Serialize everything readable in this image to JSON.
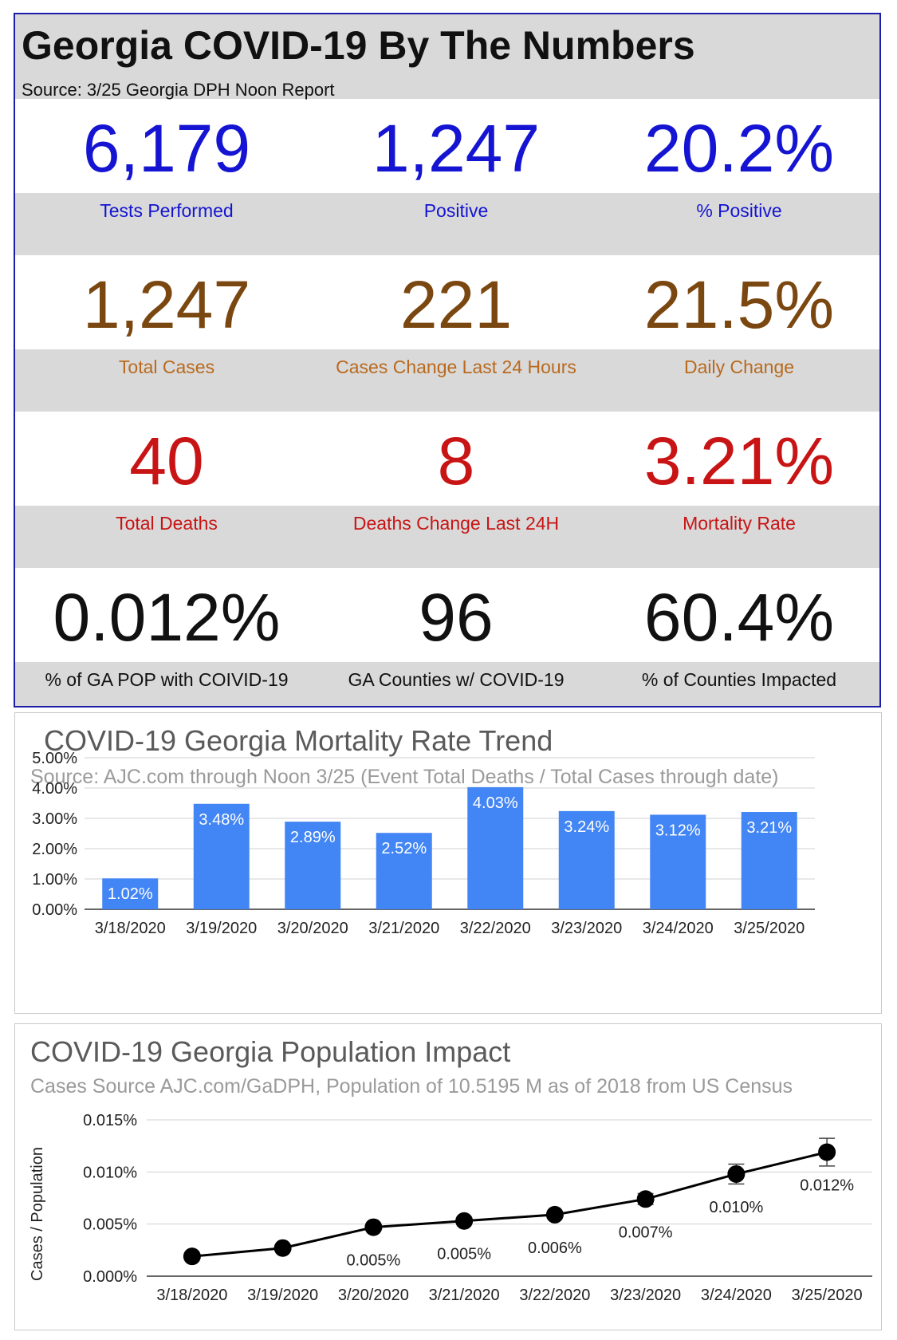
{
  "header": {
    "title": "Georgia COVID-19 By The Numbers",
    "source": "Source: 3/25 Georgia DPH Noon Report"
  },
  "stats": [
    {
      "color": "#1414d2",
      "items": [
        {
          "value": "6,179",
          "label": "Tests Performed"
        },
        {
          "value": "1,247",
          "label": "Positive"
        },
        {
          "value": "20.2%",
          "label": "% Positive"
        }
      ]
    },
    {
      "color": "#7a4710",
      "label_color": "#b86a1e",
      "items": [
        {
          "value": "1,247",
          "label": "Total Cases"
        },
        {
          "value": "221",
          "label": "Cases Change Last 24 Hours"
        },
        {
          "value": "21.5%",
          "label": "Daily Change"
        }
      ]
    },
    {
      "color": "#c81414",
      "items": [
        {
          "value": "40",
          "label": "Total Deaths"
        },
        {
          "value": "8",
          "label": "Deaths Change Last 24H"
        },
        {
          "value": "3.21%",
          "label": "Mortality Rate"
        }
      ]
    },
    {
      "color": "#111111",
      "items": [
        {
          "value": "0.012%",
          "label": "% of GA POP with COIVID-19"
        },
        {
          "value": "96",
          "label": "GA Counties w/ COVID-19"
        },
        {
          "value": "60.4%",
          "label": "% of Counties Impacted"
        }
      ]
    }
  ],
  "chart_data": [
    {
      "type": "bar",
      "title": "COVID-19 Georgia Mortality Rate Trend",
      "subtitle": "Source: AJC.com through Noon 3/25 (Event Total Deaths / Total Cases through date)",
      "categories": [
        "3/18/2020",
        "3/19/2020",
        "3/20/2020",
        "3/21/2020",
        "3/22/2020",
        "3/23/2020",
        "3/24/2020",
        "3/25/2020"
      ],
      "values": [
        1.02,
        3.48,
        2.89,
        2.52,
        4.03,
        3.24,
        3.12,
        3.21
      ],
      "data_labels": [
        "1.02%",
        "3.48%",
        "2.89%",
        "2.52%",
        "4.03%",
        "3.24%",
        "3.12%",
        "3.21%"
      ],
      "yticks": [
        "0.00%",
        "1.00%",
        "2.00%",
        "3.00%",
        "4.00%",
        "5.00%"
      ],
      "ylim": [
        0,
        5
      ],
      "grid": true,
      "color": "#4285f4"
    },
    {
      "type": "line",
      "title": "COVID-19 Georgia Population Impact",
      "subtitle": "Cases Source AJC.com/GaDPH, Population of 10.5195 M as of 2018 from US Census",
      "ylabel": "Cases / Population",
      "x": [
        "3/18/2020",
        "3/19/2020",
        "3/20/2020",
        "3/21/2020",
        "3/22/2020",
        "3/23/2020",
        "3/24/2020",
        "3/25/2020"
      ],
      "values": [
        0.0019,
        0.0027,
        0.0047,
        0.0053,
        0.0059,
        0.0074,
        0.0098,
        0.0119
      ],
      "data_labels": [
        "",
        "",
        "0.005%",
        "0.005%",
        "0.006%",
        "0.007%",
        "0.010%",
        "0.012%"
      ],
      "yticks": [
        "0.000%",
        "0.005%",
        "0.010%",
        "0.015%"
      ],
      "ylim": [
        0,
        0.015
      ],
      "grid": true,
      "error_bars": true,
      "color": "#000000"
    }
  ]
}
